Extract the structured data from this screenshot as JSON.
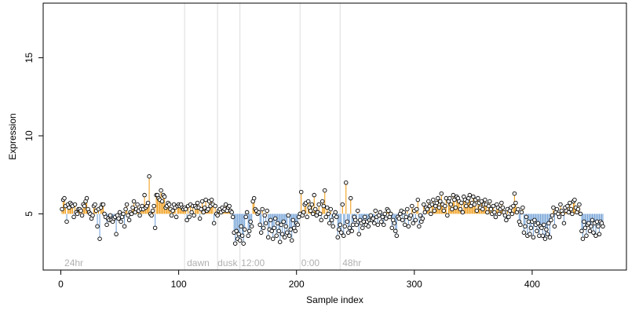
{
  "chart_data": {
    "type": "scatter",
    "title": "",
    "xlabel": "Sample index",
    "ylabel": "Expression",
    "xlim": [
      -15,
      480
    ],
    "ylim": [
      1.4,
      18.5
    ],
    "xticks": [
      0,
      100,
      200,
      300,
      400
    ],
    "yticks": [
      5,
      10,
      15
    ],
    "baseline": 5.0,
    "stem_colors": {
      "above": "#f0a020",
      "below": "#7aa6d8"
    },
    "marker": {
      "fill": "#ffffff",
      "stroke": "#000000"
    },
    "region_dividers": [
      105,
      133,
      152,
      203,
      237
    ],
    "region_labels": [
      {
        "x": 3,
        "label": "24hr"
      },
      {
        "x": 107,
        "label": "dawn"
      },
      {
        "x": 133,
        "label": "dusk"
      },
      {
        "x": 153,
        "label": "12:00"
      },
      {
        "x": 204,
        "label": "0:00"
      },
      {
        "x": 239,
        "label": "48hr"
      }
    ],
    "segments": [
      {
        "x_start": 1,
        "x_end": 34,
        "values": [
          5.3,
          5.9,
          6.0,
          5.5,
          4.5,
          5.6,
          5.4,
          5.7,
          5.6,
          5.5,
          4.8,
          5.6,
          5.1,
          5.0,
          5.3,
          5.3,
          5.2,
          4.9,
          5.6,
          5.5,
          5.8,
          6.0,
          5.3,
          5.1,
          5.0,
          4.7,
          4.9,
          5.5,
          5.6,
          5.2,
          4.2,
          5.3,
          3.4,
          5.4
        ]
      },
      {
        "x_start": 35,
        "x_end": 104,
        "values": [
          5.6,
          5.6,
          5.0,
          4.8,
          4.3,
          4.7,
          4.6,
          4.9,
          4.6,
          4.5,
          4.7,
          4.8,
          3.7,
          4.9,
          4.7,
          5.1,
          4.5,
          4.8,
          5.0,
          4.2,
          5.3,
          5.6,
          4.9,
          4.6,
          5.1,
          5.0,
          5.4,
          5.8,
          5.1,
          5.3,
          5.6,
          5.2,
          4.9,
          5.3,
          5.5,
          5.3,
          6.2,
          5.4,
          5.5,
          5.7,
          7.4,
          5.0,
          4.9,
          5.2,
          5.5,
          4.1,
          6.2,
          6.2,
          6.0,
          5.9,
          6.5,
          5.8,
          6.2,
          6.1,
          5.4,
          5.5,
          5.7,
          5.6,
          5.3,
          4.9,
          5.2,
          5.6,
          5.4,
          4.8,
          5.5,
          5.6,
          5.5,
          5.6,
          5.4,
          5.3
        ]
      },
      {
        "x_start": 105,
        "x_end": 150,
        "values": [
          5.4,
          5.3,
          4.6,
          5.5,
          4.8,
          5.6,
          5.1,
          5.5,
          4.9,
          5.5,
          5.4,
          5.7,
          5.4,
          4.7,
          5.3,
          5.8,
          5.1,
          5.4,
          5.9,
          5.2,
          5.3,
          5.8,
          5.5,
          5.9,
          5.6,
          4.4,
          5.5,
          5.0,
          4.9,
          5.2,
          5.3,
          5.1,
          5.4,
          5.2,
          5.3,
          5.6,
          5.2,
          5.4,
          5.5,
          5.2,
          5.1,
          4.8,
          3.8,
          3.1,
          3.9,
          3.4
        ]
      },
      {
        "x_start": 151,
        "x_end": 200,
        "values": [
          3.7,
          3.3,
          4.2,
          3.6,
          3.1,
          4.0,
          4.8,
          5.1,
          3.6,
          3.9,
          4.5,
          4.2,
          5.8,
          6.0,
          5.3,
          5.2,
          5.0,
          5.1,
          4.3,
          3.8,
          5.3,
          4.1,
          4.9,
          4.4,
          5.2,
          3.5,
          4.0,
          4.6,
          3.9,
          3.4,
          4.1,
          4.7,
          3.6,
          4.4,
          3.9,
          3.2,
          4.3,
          3.7,
          4.5,
          3.5,
          4.2,
          3.8,
          4.9,
          3.6,
          4.0,
          3.3,
          4.6,
          4.1,
          3.9,
          4.4
        ]
      },
      {
        "x_start": 201,
        "x_end": 300,
        "values": [
          4.3,
          4.8,
          5.0,
          6.4,
          4.9,
          5.1,
          5.6,
          5.7,
          4.8,
          5.8,
          5.4,
          5.2,
          5.6,
          5.0,
          6.2,
          5.3,
          4.9,
          5.1,
          5.6,
          5.0,
          4.6,
          5.8,
          5.5,
          6.5,
          4.8,
          5.4,
          5.0,
          4.4,
          5.3,
          4.6,
          4.2,
          4.9,
          5.1,
          4.8,
          3.5,
          4.0,
          4.3,
          3.8,
          5.6,
          3.6,
          4.2,
          7.0,
          4.5,
          3.8,
          4.1,
          6.0,
          3.9,
          4.3,
          4.8,
          4.6,
          4.3,
          5.2,
          3.7,
          4.6,
          4.4,
          4.1,
          4.5,
          4.8,
          4.3,
          4.5,
          4.2,
          4.6,
          4.9,
          4.6,
          4.7,
          4.4,
          5.2,
          4.8,
          4.3,
          4.9,
          5.1,
          4.5,
          4.8,
          4.3,
          5.0,
          4.7,
          5.3,
          5.2,
          4.8,
          5.0,
          4.1,
          4.6,
          4.4,
          3.9,
          3.6,
          4.8,
          4.7,
          5.0,
          5.2,
          4.6,
          5.1,
          4.3,
          4.8,
          5.3,
          4.2,
          4.7,
          4.9,
          5.5,
          4.4,
          5.2
        ]
      },
      {
        "x_start": 301,
        "x_end": 380,
        "values": [
          4.6,
          5.3,
          5.9,
          4.2,
          4.9,
          4.5,
          4.7,
          5.6,
          5.1,
          5.4,
          5.3,
          5.8,
          5.5,
          5.0,
          5.6,
          5.9,
          5.2,
          5.5,
          5.7,
          6.0,
          5.4,
          5.8,
          6.3,
          5.6,
          5.2,
          5.5,
          6.0,
          4.9,
          5.8,
          6.0,
          5.6,
          5.3,
          6.2,
          5.9,
          5.4,
          6.1,
          6.0,
          5.8,
          5.3,
          5.7,
          5.1,
          6.1,
          5.9,
          5.5,
          5.8,
          6.0,
          6.2,
          5.5,
          5.7,
          6.1,
          5.6,
          5.9,
          5.2,
          6.0,
          5.7,
          5.4,
          5.8,
          5.3,
          5.6,
          5.9,
          5.6,
          5.1,
          5.5,
          5.8,
          5.3,
          5.0,
          5.5,
          5.1,
          4.8,
          5.6,
          5.4,
          5.0,
          5.3,
          5.7,
          5.4,
          5.1,
          4.9,
          4.6,
          5.3,
          4.8
        ]
      },
      {
        "x_start": 381,
        "x_end": 460,
        "values": [
          5.2,
          5.4,
          5.0,
          5.5,
          6.3,
          5.7,
          5.1,
          5.3,
          4.5,
          4.3,
          5.1,
          5.4,
          3.8,
          4.2,
          4.8,
          3.6,
          4.5,
          3.7,
          4.1,
          4.5,
          3.5,
          4.6,
          4.3,
          3.9,
          4.4,
          3.6,
          4.2,
          4.1,
          3.6,
          4.3,
          3.4,
          4.0,
          3.7,
          4.4,
          3.5,
          4.6,
          4.9,
          5.4,
          4.2,
          5.1,
          5.3,
          5.0,
          4.8,
          5.6,
          5.2,
          5.0,
          4.4,
          5.4,
          5.2,
          5.5,
          5.1,
          5.7,
          5.3,
          5.0,
          5.8,
          5.9,
          5.4,
          5.1,
          5.3,
          5.6,
          5.0,
          3.9,
          3.4,
          4.5,
          4.1,
          3.6,
          4.3,
          4.4,
          3.9,
          4.2,
          4.6,
          3.8,
          4.4,
          3.6,
          4.5,
          4.2,
          3.7,
          4.5,
          4.4,
          4.2
        ]
      }
    ]
  }
}
